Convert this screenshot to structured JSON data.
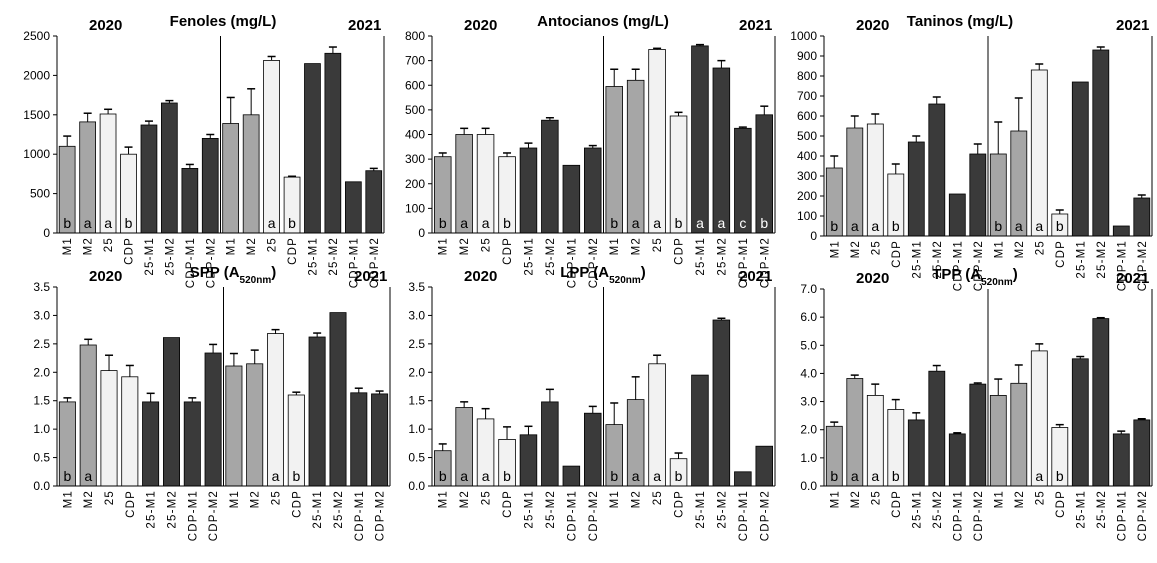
{
  "colors": {
    "M1": "#a6a6a6",
    "M2": "#a6a6a6",
    "25": "#f2f2f2",
    "CDP": "#f2f2f2",
    "dark": "#3a3a3a",
    "axis": "#000000"
  },
  "chart_data": [
    {
      "type": "bar",
      "title_main": "Fenoles (mg/L)",
      "title_sub": "",
      "title_tail": "",
      "year_left": "2020",
      "year_right": "2021",
      "ylim": [
        0,
        2500
      ],
      "yticks": [
        "0",
        "500",
        "1000",
        "1500",
        "2000",
        "2500"
      ],
      "ytick_values": [
        0,
        500,
        1000,
        1500,
        2000,
        2500
      ],
      "categories": [
        "M1",
        "M2",
        "25",
        "CDP",
        "25-M1",
        "25-M2",
        "CDP-M1",
        "CDP-M2",
        "M1",
        "M2",
        "25",
        "CDP",
        "25-M1",
        "25-M2",
        "CDP-M1",
        "CDP-M2"
      ],
      "values": [
        1100,
        1410,
        1510,
        1000,
        1370,
        1650,
        820,
        1200,
        1390,
        1500,
        2190,
        710,
        2150,
        2280,
        650,
        790
      ],
      "errors": [
        130,
        110,
        60,
        90,
        50,
        30,
        50,
        50,
        330,
        330,
        50,
        10,
        0,
        80,
        0,
        30
      ],
      "letters": [
        "b",
        "a",
        "a",
        "b",
        "",
        "",
        "",
        "",
        "",
        "",
        "a",
        "b",
        "",
        "",
        "",
        ""
      ]
    },
    {
      "type": "bar",
      "title_main": "Antocianos (mg/L)",
      "title_sub": "",
      "title_tail": "",
      "year_left": "2020",
      "year_right": "2021",
      "ylim": [
        0,
        800
      ],
      "yticks": [
        "0",
        "100",
        "200",
        "300",
        "400",
        "500",
        "600",
        "700",
        "800"
      ],
      "ytick_values": [
        0,
        100,
        200,
        300,
        400,
        500,
        600,
        700,
        800
      ],
      "categories": [
        "M1",
        "M2",
        "25",
        "CDP",
        "25-M1",
        "25-M2",
        "CDP-M1",
        "CDP-M2",
        "M1",
        "M2",
        "25",
        "CDP",
        "25-M1",
        "25-M2",
        "CDP-M1",
        "CDP-M2"
      ],
      "values": [
        310,
        400,
        400,
        310,
        345,
        458,
        275,
        345,
        595,
        620,
        745,
        475,
        760,
        670,
        425,
        480
      ],
      "errors": [
        15,
        25,
        25,
        15,
        20,
        10,
        0,
        10,
        70,
        45,
        5,
        15,
        5,
        30,
        5,
        35
      ],
      "letters": [
        "b",
        "a",
        "a",
        "b",
        "",
        "",
        "",
        "",
        "b",
        "a",
        "a",
        "b",
        "a",
        "a",
        "c",
        "b"
      ]
    },
    {
      "type": "bar",
      "title_main": "Taninos (mg/L)",
      "title_sub": "",
      "title_tail": "",
      "year_left": "2020",
      "year_right": "2021",
      "ylim": [
        0,
        1000
      ],
      "yticks": [
        "0",
        "100",
        "200",
        "300",
        "400",
        "500",
        "600",
        "700",
        "800",
        "900",
        "1000"
      ],
      "ytick_values": [
        0,
        100,
        200,
        300,
        400,
        500,
        600,
        700,
        800,
        900,
        1000
      ],
      "categories": [
        "M1",
        "M2",
        "25",
        "CDP",
        "25-M1",
        "25-M2",
        "CDP-M1",
        "CDP-M2",
        "M1",
        "M2",
        "25",
        "CDP",
        "25-M1",
        "25-M2",
        "CDP-M1",
        "CDP-M2"
      ],
      "values": [
        340,
        540,
        560,
        310,
        470,
        660,
        210,
        410,
        410,
        525,
        830,
        110,
        770,
        930,
        50,
        190
      ],
      "errors": [
        60,
        60,
        50,
        50,
        30,
        35,
        0,
        50,
        160,
        165,
        30,
        20,
        0,
        15,
        0,
        15
      ],
      "letters": [
        "b",
        "a",
        "a",
        "b",
        "",
        "",
        "",
        "",
        "b",
        "a",
        "a",
        "b",
        "",
        "",
        "",
        ""
      ]
    },
    {
      "type": "bar",
      "title_main": "SPP (A",
      "title_sub": "520nm",
      "title_tail": ")",
      "year_left": "2020",
      "year_right": "2021",
      "ylim": [
        0,
        3.5
      ],
      "yticks": [
        "0.0",
        "0.5",
        "1.0",
        "1.5",
        "2.0",
        "2.5",
        "3.0",
        "3.5"
      ],
      "ytick_values": [
        0,
        0.5,
        1.0,
        1.5,
        2.0,
        2.5,
        3.0,
        3.5
      ],
      "categories": [
        "M1",
        "M2",
        "25",
        "CDP",
        "25-M1",
        "25-M2",
        "CDP-M1",
        "CDP-M2",
        "M1",
        "M2",
        "25",
        "CDP",
        "25-M1",
        "25-M2",
        "CDP-M1",
        "CDP-M2"
      ],
      "values": [
        1.48,
        2.48,
        2.03,
        1.92,
        1.48,
        2.61,
        1.48,
        2.34,
        2.11,
        2.15,
        2.68,
        1.6,
        2.62,
        3.05,
        1.64,
        1.62
      ],
      "errors": [
        0.07,
        0.1,
        0.27,
        0.2,
        0.15,
        0.0,
        0.07,
        0.15,
        0.22,
        0.24,
        0.07,
        0.05,
        0.07,
        0.0,
        0.08,
        0.05
      ],
      "letters": [
        "b",
        "a",
        "",
        "",
        "",
        "",
        "",
        "",
        "",
        "",
        "a",
        "b",
        "",
        "",
        "",
        ""
      ]
    },
    {
      "type": "bar",
      "title_main": "LPP (A",
      "title_sub": "520nm",
      "title_tail": ")",
      "year_left": "2020",
      "year_right": "2021",
      "ylim": [
        0,
        3.5
      ],
      "yticks": [
        "0.0",
        "0.5",
        "1.0",
        "1.5",
        "2.0",
        "2.5",
        "3.0",
        "3.5"
      ],
      "ytick_values": [
        0,
        0.5,
        1.0,
        1.5,
        2.0,
        2.5,
        3.0,
        3.5
      ],
      "categories": [
        "M1",
        "M2",
        "25",
        "CDP",
        "25-M1",
        "25-M2",
        "CDP-M1",
        "CDP-M2",
        "M1",
        "M2",
        "25",
        "CDP",
        "25-M1",
        "25-M2",
        "CDP-M1",
        "CDP-M2"
      ],
      "values": [
        0.62,
        1.38,
        1.18,
        0.82,
        0.9,
        1.48,
        0.35,
        1.28,
        1.08,
        1.52,
        2.15,
        0.48,
        1.95,
        2.92,
        0.25,
        0.7
      ],
      "errors": [
        0.12,
        0.1,
        0.18,
        0.22,
        0.15,
        0.22,
        0.0,
        0.12,
        0.38,
        0.4,
        0.15,
        0.1,
        0.0,
        0.03,
        0.0,
        0.0
      ],
      "letters": [
        "b",
        "a",
        "a",
        "b",
        "",
        "",
        "",
        "",
        "b",
        "a",
        "a",
        "b",
        "",
        "",
        "",
        ""
      ]
    },
    {
      "type": "bar",
      "title_main": "TPP (A",
      "title_sub": "520nm",
      "title_tail": ")",
      "year_left": "2020",
      "year_right": "2021",
      "ylim": [
        0,
        7.0
      ],
      "yticks": [
        "0.0",
        "1.0",
        "2.0",
        "3.0",
        "4.0",
        "5.0",
        "6.0",
        "7.0"
      ],
      "ytick_values": [
        0,
        1,
        2,
        3,
        4,
        5,
        6,
        7
      ],
      "categories": [
        "M1",
        "M2",
        "25",
        "CDP",
        "25-M1",
        "25-M2",
        "CDP-M1",
        "CDP-M2",
        "M1",
        "M2",
        "25",
        "CDP",
        "25-M1",
        "25-M2",
        "CDP-M1",
        "CDP-M2"
      ],
      "values": [
        2.12,
        3.82,
        3.22,
        2.72,
        2.35,
        4.08,
        1.85,
        3.62,
        3.22,
        3.65,
        4.8,
        2.08,
        4.52,
        5.95,
        1.85,
        2.35
      ],
      "errors": [
        0.15,
        0.12,
        0.4,
        0.35,
        0.25,
        0.2,
        0.04,
        0.04,
        0.58,
        0.65,
        0.25,
        0.1,
        0.08,
        0.03,
        0.1,
        0.04
      ],
      "letters": [
        "b",
        "a",
        "a",
        "b",
        "",
        "",
        "",
        "",
        "",
        "",
        "a",
        "b",
        "",
        "",
        "",
        ""
      ]
    }
  ]
}
